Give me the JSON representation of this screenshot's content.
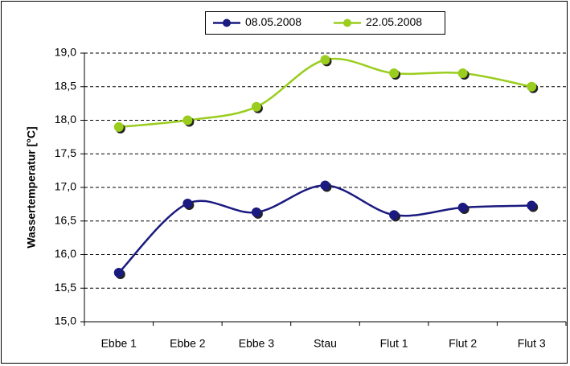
{
  "chart_data": {
    "type": "line",
    "ylabel": "Wassertemperatur [°C]",
    "categories": [
      "Ebbe 1",
      "Ebbe 2",
      "Ebbe 3",
      "Stau",
      "Flut 1",
      "Flut 2",
      "Flut 3"
    ],
    "series": [
      {
        "name": "08.05.2008",
        "color": "#1a1a80",
        "values": [
          15.73,
          16.76,
          16.63,
          17.03,
          16.59,
          16.7,
          16.73
        ]
      },
      {
        "name": "22.05.2008",
        "color": "#9acd1e",
        "values": [
          17.9,
          18.0,
          18.2,
          18.9,
          18.7,
          18.7,
          18.5
        ]
      }
    ],
    "ylim": [
      15,
      19
    ],
    "yticks": [
      {
        "value": 15,
        "label": "15,0"
      },
      {
        "value": 15.5,
        "label": "15,5"
      },
      {
        "value": 16,
        "label": "16,0"
      },
      {
        "value": 16.5,
        "label": "16,5"
      },
      {
        "value": 17,
        "label": "17,0"
      },
      {
        "value": 17.5,
        "label": "17,5"
      },
      {
        "value": 18,
        "label": "18,0"
      },
      {
        "value": 18.5,
        "label": "18,5"
      },
      {
        "value": 19,
        "label": "19,0"
      }
    ],
    "grid": true,
    "legend": "top"
  }
}
